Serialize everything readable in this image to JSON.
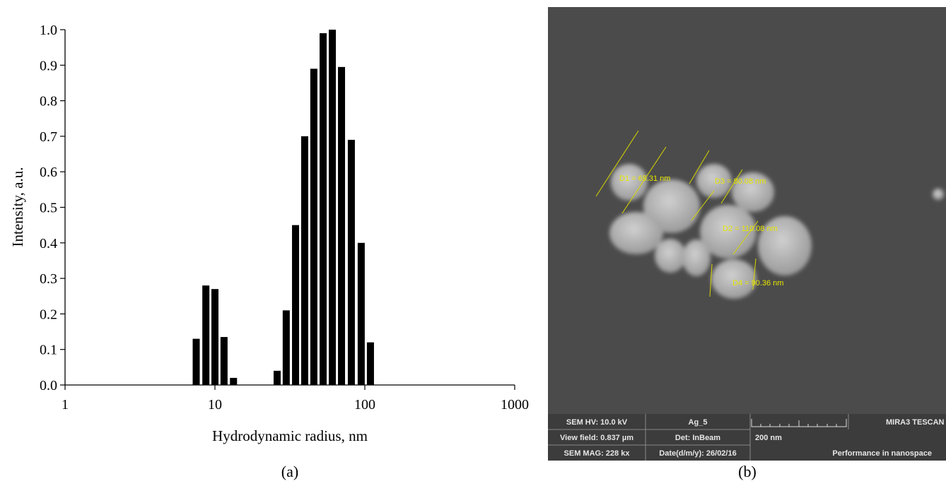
{
  "chart_data": {
    "type": "bar",
    "xlabel": "Hydrodynamic radius, nm",
    "ylabel": "Intensity, a.u.",
    "x": [
      7.5,
      8.7,
      10,
      11.5,
      13.3,
      26,
      29.9,
      34.5,
      39.7,
      45.7,
      52.7,
      60.7,
      69.9,
      81.3,
      94.6,
      109
    ],
    "values": [
      0.13,
      0.28,
      0.27,
      0.135,
      0.02,
      0.04,
      0.21,
      0.45,
      0.7,
      0.89,
      0.99,
      1.0,
      0.895,
      0.69,
      0.4,
      0.12
    ],
    "color": "#000000",
    "xscale": "log",
    "xlim": [
      1,
      1000
    ],
    "xticks": [
      1,
      10,
      100,
      1000
    ],
    "ylim": [
      0,
      1
    ],
    "yticks": [
      {
        "value": 0,
        "label": "0.0"
      },
      0.1,
      0.2,
      0.3,
      0.4,
      0.5,
      0.6,
      0.7,
      0.8,
      0.9,
      {
        "value": 1,
        "label": "1.0"
      }
    ]
  },
  "figure": {
    "panel_a": "(a)",
    "panel_b": "(b)",
    "sem": {
      "measurements": [
        "D1 = 65.31 nm",
        "D3 = 80.08 nm",
        "D2 = 110.08 nm",
        "D4 = 90.36 nm"
      ],
      "info": {
        "hv": "SEM HV: 10.0 kV",
        "sample": "Ag_5",
        "brand": "MIRA3 TESCAN",
        "view_field": "View field: 0.837 µm",
        "detector": "Det: InBeam",
        "scale": "200 nm",
        "mag": "SEM MAG: 228 kx",
        "date": "Date(d/m/y): 26/02/16",
        "slogan": "Performance in nanospace"
      }
    }
  }
}
